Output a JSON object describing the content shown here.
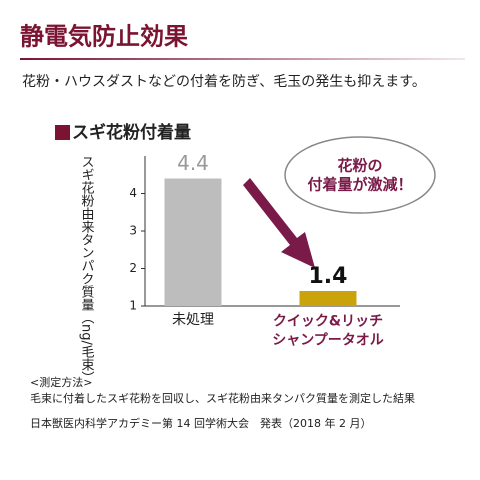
{
  "header": {
    "title": "静電気防止効果",
    "subtitle": "花粉・ハウスダストなどの付着を防ぎ、毛玉の発生も抑えます。"
  },
  "chart_data": {
    "type": "bar",
    "title": "スギ花粉付着量",
    "y_label": "スギ花粉由来タンパク質量（ng/毛束）",
    "categories": [
      "未処理",
      "クイック&リッチ\nシャンプータオル"
    ],
    "values": [
      4.4,
      1.4
    ],
    "colors": [
      "#bdbdbd",
      "#c9a20c"
    ],
    "ylim": [
      1,
      5
    ],
    "yticks": [
      1,
      2,
      3,
      4
    ],
    "grid": false,
    "annotation": "花粉の\n付着量が激減！"
  },
  "notes": [
    "<測定方法>",
    "毛束に付着したスギ花粉を回収し、スギ花粉由来タンパク質量を測定した結果",
    "日本獣医内科学アカデミー第 14 回学術大会　発表（2018 年 2 月）"
  ]
}
